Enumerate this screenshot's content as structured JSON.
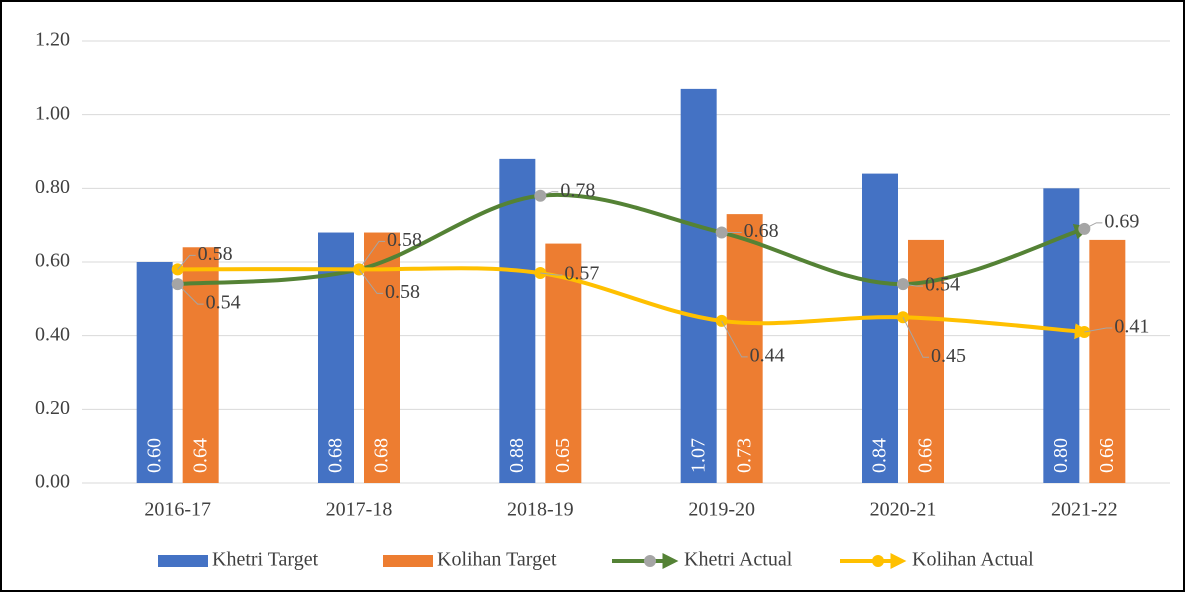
{
  "chart_data": {
    "type": "bar_line",
    "categories": [
      "2016-17",
      "2017-18",
      "2018-19",
      "2019-20",
      "2020-21",
      "2021-22"
    ],
    "series": [
      {
        "name": "Khetri Target",
        "type": "bar",
        "color": "#4472c4",
        "values": [
          0.6,
          0.68,
          0.88,
          1.07,
          0.84,
          0.8
        ],
        "value_labels": [
          "0.60",
          "0.68",
          "0.88",
          "1.07",
          "0.84",
          "0.80"
        ]
      },
      {
        "name": "Kolihan Target",
        "type": "bar",
        "color": "#ed7d31",
        "values": [
          0.64,
          0.68,
          0.65,
          0.73,
          0.66,
          0.66
        ],
        "value_labels": [
          "0.64",
          "0.68",
          "0.65",
          "0.73",
          "0.66",
          "0.66"
        ]
      },
      {
        "name": "Khetri Actual",
        "type": "line",
        "color": "#548235",
        "marker_color": "#a5a5a5",
        "values": [
          0.54,
          0.58,
          0.78,
          0.68,
          0.54,
          0.69
        ]
      },
      {
        "name": "Kolihan Actual",
        "type": "line",
        "color": "#ffc000",
        "marker_color": "#ffc000",
        "values": [
          0.58,
          0.58,
          0.57,
          0.44,
          0.45,
          0.41
        ]
      }
    ],
    "ylim": [
      0,
      1.2
    ],
    "yticks": [
      {
        "value": 0,
        "label": "0.00"
      },
      {
        "value": 0.2,
        "label": "0.20"
      },
      {
        "value": 0.4,
        "label": "0.40"
      },
      {
        "value": 0.6,
        "label": "0.60"
      },
      {
        "value": 0.8,
        "label": "0.80"
      },
      {
        "value": 1.0,
        "label": "1.00"
      },
      {
        "value": 1.2,
        "label": "1.20"
      }
    ],
    "grid": true,
    "legend": "bottom"
  }
}
